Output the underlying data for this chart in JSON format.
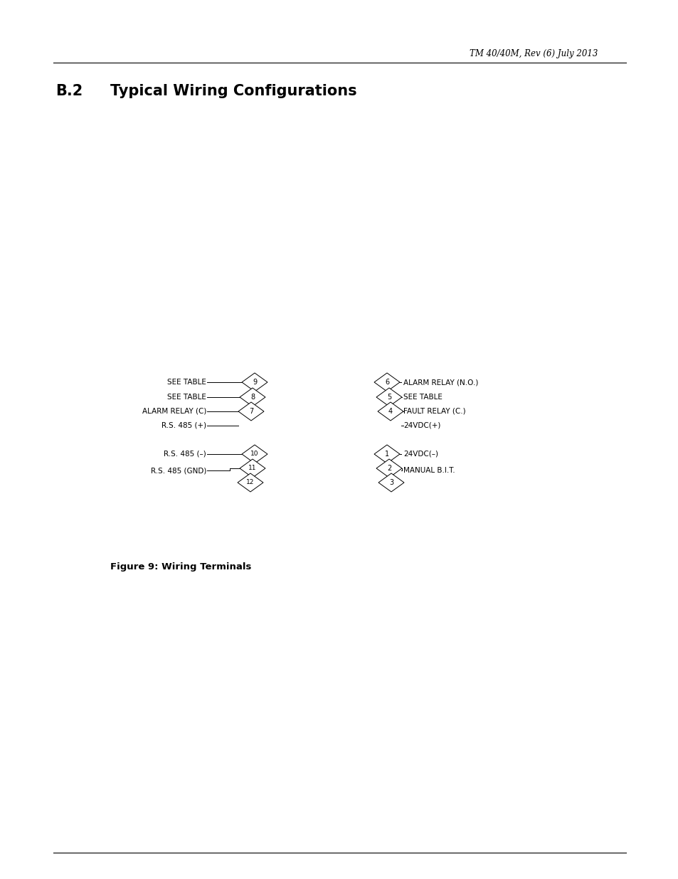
{
  "header_text": "TM 40/40M, Rev (6) July 2013",
  "section_title_b": "B.2",
  "section_title_main": "Typical Wiring Configurations",
  "figure_caption": "Figure 9: Wiring Terminals",
  "bg_color": "#ffffff",
  "text_color": "#000000",
  "line_color": "#000000",
  "left_upper_labels": [
    "SEE TABLE",
    "SEE TABLE",
    "ALARM RELAY (C)",
    "R.S. 485 (+)"
  ],
  "left_lower_labels": [
    "R.S. 485 (–)",
    "R.S. 485 (GND)"
  ],
  "right_upper_labels": [
    "ALARM RELAY (N.O.)",
    "SEE TABLE",
    "FAULT RELAY (C.)",
    "24VDC(+)"
  ],
  "right_lower_labels": [
    "24VDC(–)",
    "MANUAL B.I.T."
  ],
  "left_upper_diamonds": [
    {
      "label": "9",
      "top": true
    },
    {
      "label": "8"
    },
    {
      "label": "7"
    }
  ],
  "left_lower_diamonds": [
    {
      "label": "10"
    },
    {
      "label": "11"
    },
    {
      "label": "12"
    }
  ],
  "right_upper_diamonds": [
    {
      "label": "6",
      "top": true
    },
    {
      "label": "5"
    },
    {
      "label": "4"
    }
  ],
  "right_lower_diamonds": [
    {
      "label": "1"
    },
    {
      "label": "2"
    },
    {
      "label": "3"
    }
  ]
}
